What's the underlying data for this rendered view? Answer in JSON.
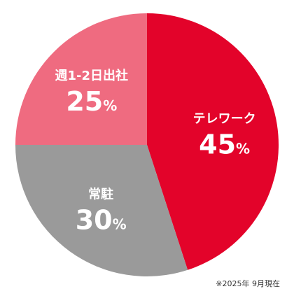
{
  "chart_data": {
    "type": "pie",
    "title": "",
    "slices": [
      {
        "label": "テレワーク",
        "value": 45,
        "color": "#e3032a"
      },
      {
        "label": "常駐",
        "value": 30,
        "color": "#9a9a9a"
      },
      {
        "label": "週1-2日出社",
        "value": 25,
        "color": "#ef6b80"
      }
    ],
    "unit": "%",
    "start": "top",
    "direction": "clockwise"
  },
  "footnote": "※2025年 9月現在"
}
